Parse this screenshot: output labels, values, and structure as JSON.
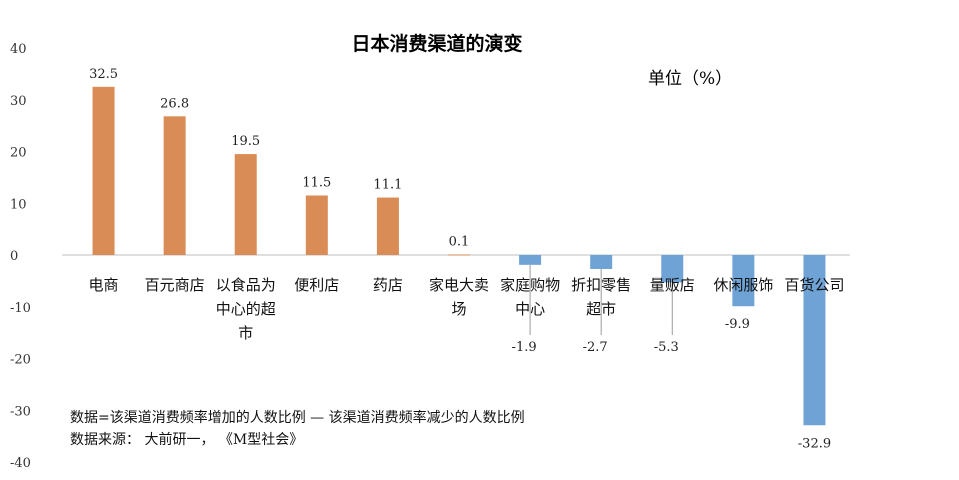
{
  "chart_data": {
    "type": "bar",
    "title": "日本消费渠道的演变",
    "unit": "单位（%）",
    "ylim": [
      -40,
      40
    ],
    "ytick_step": 10,
    "grid": false,
    "categories": [
      [
        "电商"
      ],
      [
        "百元商店"
      ],
      [
        "以食品为",
        "中心的超",
        "市"
      ],
      [
        "便利店"
      ],
      [
        "药店"
      ],
      [
        "家电大卖",
        "场"
      ],
      [
        "家庭购物",
        "中心"
      ],
      [
        "折扣零售",
        "超市"
      ],
      [
        "量贩店"
      ],
      [
        "休闲服饰"
      ],
      [
        "百货公司"
      ]
    ],
    "values": [
      32.5,
      26.8,
      19.5,
      11.5,
      11.1,
      0.1,
      -1.9,
      -2.7,
      -5.3,
      -9.9,
      -32.9
    ],
    "value_labels": [
      "32.5",
      "26.8",
      "19.5",
      "11.5",
      "11.1",
      "0.1",
      "-1.9",
      "-2.7",
      "-5.3",
      "-9.9",
      "-32.9"
    ],
    "colors": {
      "positive": "#D98C55",
      "negative": "#6FA3D6",
      "axis": "#BFBFBF",
      "leader": "#9A9A9A"
    },
    "notes": [
      "数据=该渠道消费频率增加的人数比例 — 该渠道消费频率减少的人数比例",
      "数据来源： 大前研一， 《M型社会》"
    ]
  }
}
